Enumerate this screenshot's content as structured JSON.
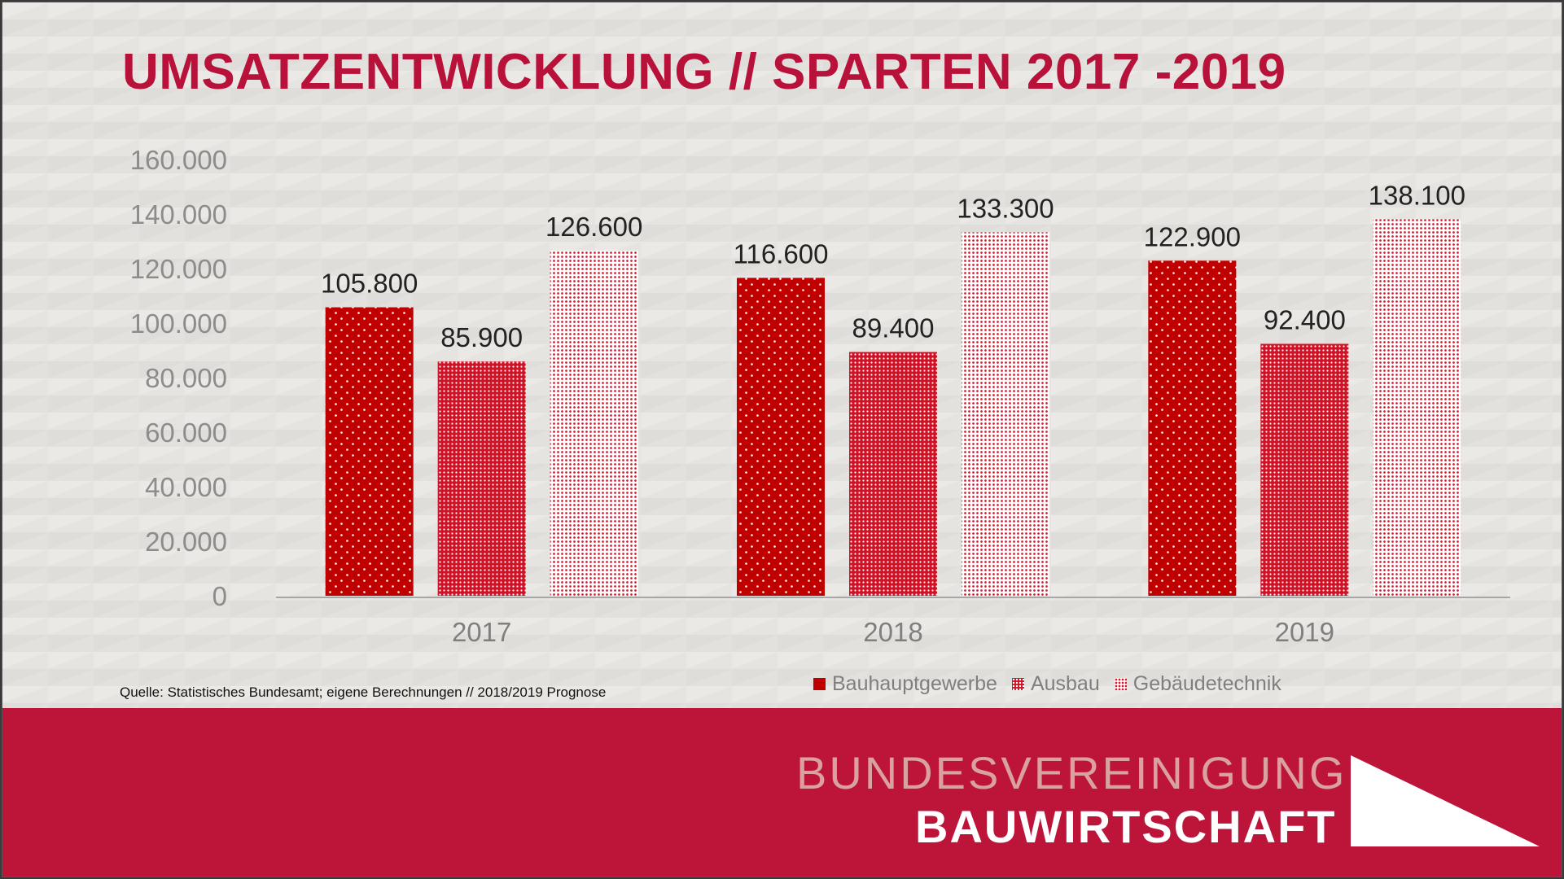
{
  "header": {
    "title": "UMSATZENTWICKLUNG // SPARTEN 2017 -2019"
  },
  "footer": {
    "source": "Quelle: Statistisches Bundesamt; eigene Berechnungen // 2018/2019 Prognose",
    "logo_line1": "BUNDESVEREINIGUNG",
    "logo_line2": "BAUWIRTSCHAFT",
    "band_color": "#bc1539"
  },
  "chart_data": {
    "type": "bar",
    "title": "UMSATZENTWICKLUNG // SPARTEN 2017 -2019",
    "xlabel": "",
    "ylabel": "",
    "categories": [
      "2017",
      "2018",
      "2019"
    ],
    "series": [
      {
        "name": "Bauhauptgewerbe",
        "values": [
          105800,
          116600,
          122900
        ],
        "labels": [
          "105.800",
          "116.600",
          "122.900"
        ],
        "color": "#c00000"
      },
      {
        "name": "Ausbau",
        "values": [
          85900,
          89400,
          92400
        ],
        "labels": [
          "85.900",
          "89.400",
          "92.400"
        ],
        "color": "#d01226"
      },
      {
        "name": "Gebäudetechnik",
        "values": [
          126600,
          133300,
          138100
        ],
        "labels": [
          "126.600",
          "133.300",
          "138.100"
        ],
        "color": "#d21a30"
      }
    ],
    "yticks": [
      0,
      20000,
      40000,
      60000,
      80000,
      100000,
      120000,
      140000,
      160000
    ],
    "ytick_labels": [
      "0",
      "20.000",
      "40.000",
      "60.000",
      "80.000",
      "100.000",
      "120.000",
      "140.000",
      "160.000"
    ],
    "ylim": [
      0,
      160000
    ],
    "grid": false,
    "legend_position": "bottom-right"
  }
}
